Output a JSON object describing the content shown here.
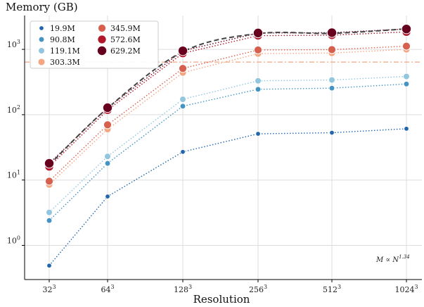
{
  "chart_data": {
    "type": "scatter",
    "title": "",
    "xlabel": "Resolution",
    "ylabel": "Memory (GB)",
    "x_scale": "log2",
    "y_scale": "log",
    "categories": [
      "32",
      "64",
      "128",
      "256",
      "512",
      "1024"
    ],
    "category_exponent": "3",
    "ylim": [
      0.3,
      3300
    ],
    "yticks": [
      {
        "value": 1,
        "base": "10",
        "exp": "0"
      },
      {
        "value": 10,
        "base": "10",
        "exp": "1"
      },
      {
        "value": 100,
        "base": "10",
        "exp": "2"
      },
      {
        "value": 1000,
        "base": "10",
        "exp": "3"
      }
    ],
    "grid": true,
    "legend_position": "top-left",
    "series": [
      {
        "name": "19.9M",
        "color": "#2166ac",
        "values": [
          0.49,
          5.6,
          27,
          51,
          53,
          61
        ]
      },
      {
        "name": "90.8M",
        "color": "#4393c3",
        "values": [
          2.4,
          18,
          135,
          245,
          255,
          295
        ]
      },
      {
        "name": "119.1M",
        "color": "#92c5de",
        "values": [
          3.2,
          23,
          172,
          330,
          340,
          385
        ]
      },
      {
        "name": "303.3M",
        "color": "#f4a582",
        "values": [
          8.5,
          60,
          440,
          860,
          880,
          1000
        ]
      },
      {
        "name": "345.9M",
        "color": "#d6604d",
        "values": [
          9.6,
          70,
          510,
          980,
          990,
          1120
        ]
      },
      {
        "name": "572.6M",
        "color": "#b2182b",
        "values": [
          16,
          118,
          870,
          1620,
          1650,
          1850
        ]
      },
      {
        "name": "629.2M",
        "color": "#67001f",
        "values": [
          18,
          128,
          950,
          1780,
          1800,
          2050
        ]
      }
    ],
    "fit_line": {
      "color": "#444444",
      "values": [
        17,
        126,
        920,
        1740,
        1760,
        2060
      ]
    },
    "threshold_line": {
      "value": 640,
      "color": "#f4a582"
    },
    "annotation": {
      "base": "M ∝ N",
      "exp": "1.34"
    }
  }
}
